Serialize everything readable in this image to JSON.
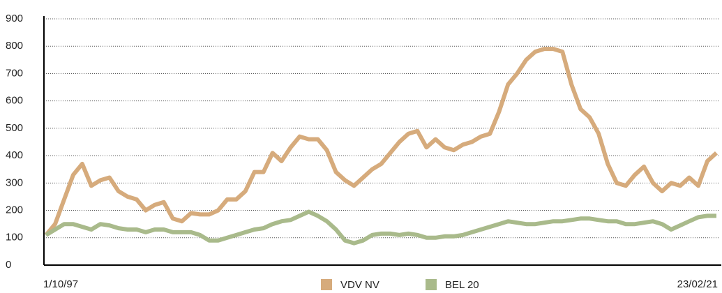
{
  "chart_data": {
    "type": "line",
    "categories": [
      "1/10/97",
      null,
      null,
      null,
      null,
      null,
      null,
      null,
      null,
      null,
      null,
      null,
      null,
      null,
      null,
      null,
      null,
      null,
      null,
      null,
      null,
      null,
      null,
      null,
      null,
      null,
      null,
      null,
      null,
      null,
      null,
      null,
      null,
      null,
      null,
      null,
      null,
      null,
      null,
      null,
      null,
      null,
      null,
      null,
      null,
      null,
      null,
      null,
      null,
      null,
      null,
      null,
      null,
      null,
      null,
      null,
      null,
      null,
      null,
      null,
      null,
      null,
      null,
      null,
      null,
      null,
      null,
      null,
      null,
      null,
      null,
      null,
      null,
      null,
      "23/02/21"
    ],
    "series": [
      {
        "name": "VDV NV",
        "color": "#d6ab7c",
        "values": [
          110,
          150,
          240,
          330,
          370,
          290,
          310,
          320,
          270,
          250,
          240,
          200,
          220,
          230,
          170,
          160,
          190,
          185,
          185,
          200,
          240,
          240,
          270,
          340,
          340,
          410,
          380,
          430,
          470,
          460,
          460,
          420,
          340,
          310,
          290,
          320,
          350,
          370,
          410,
          450,
          480,
          490,
          430,
          460,
          430,
          420,
          440,
          450,
          470,
          480,
          560,
          660,
          700,
          750,
          780,
          790,
          790,
          780,
          660,
          570,
          540,
          480,
          370,
          300,
          290,
          330,
          360,
          300,
          270,
          300,
          290,
          320,
          290,
          380,
          410
        ]
      },
      {
        "name": "BEL 20",
        "color": "#a9ba8b",
        "values": [
          110,
          130,
          150,
          150,
          140,
          130,
          150,
          145,
          135,
          130,
          130,
          120,
          130,
          130,
          120,
          120,
          120,
          110,
          90,
          90,
          100,
          110,
          120,
          130,
          135,
          150,
          160,
          165,
          180,
          195,
          180,
          160,
          130,
          90,
          80,
          90,
          110,
          115,
          115,
          110,
          115,
          110,
          100,
          100,
          105,
          105,
          110,
          120,
          130,
          140,
          150,
          160,
          155,
          150,
          150,
          155,
          160,
          160,
          165,
          170,
          170,
          165,
          160,
          160,
          150,
          150,
          155,
          160,
          150,
          130,
          145,
          160,
          175,
          180,
          180
        ]
      }
    ],
    "ylim": [
      0,
      900
    ],
    "yticks": [
      0,
      100,
      200,
      300,
      400,
      500,
      600,
      700,
      800,
      900
    ],
    "grid": true,
    "legend": "bottom"
  }
}
